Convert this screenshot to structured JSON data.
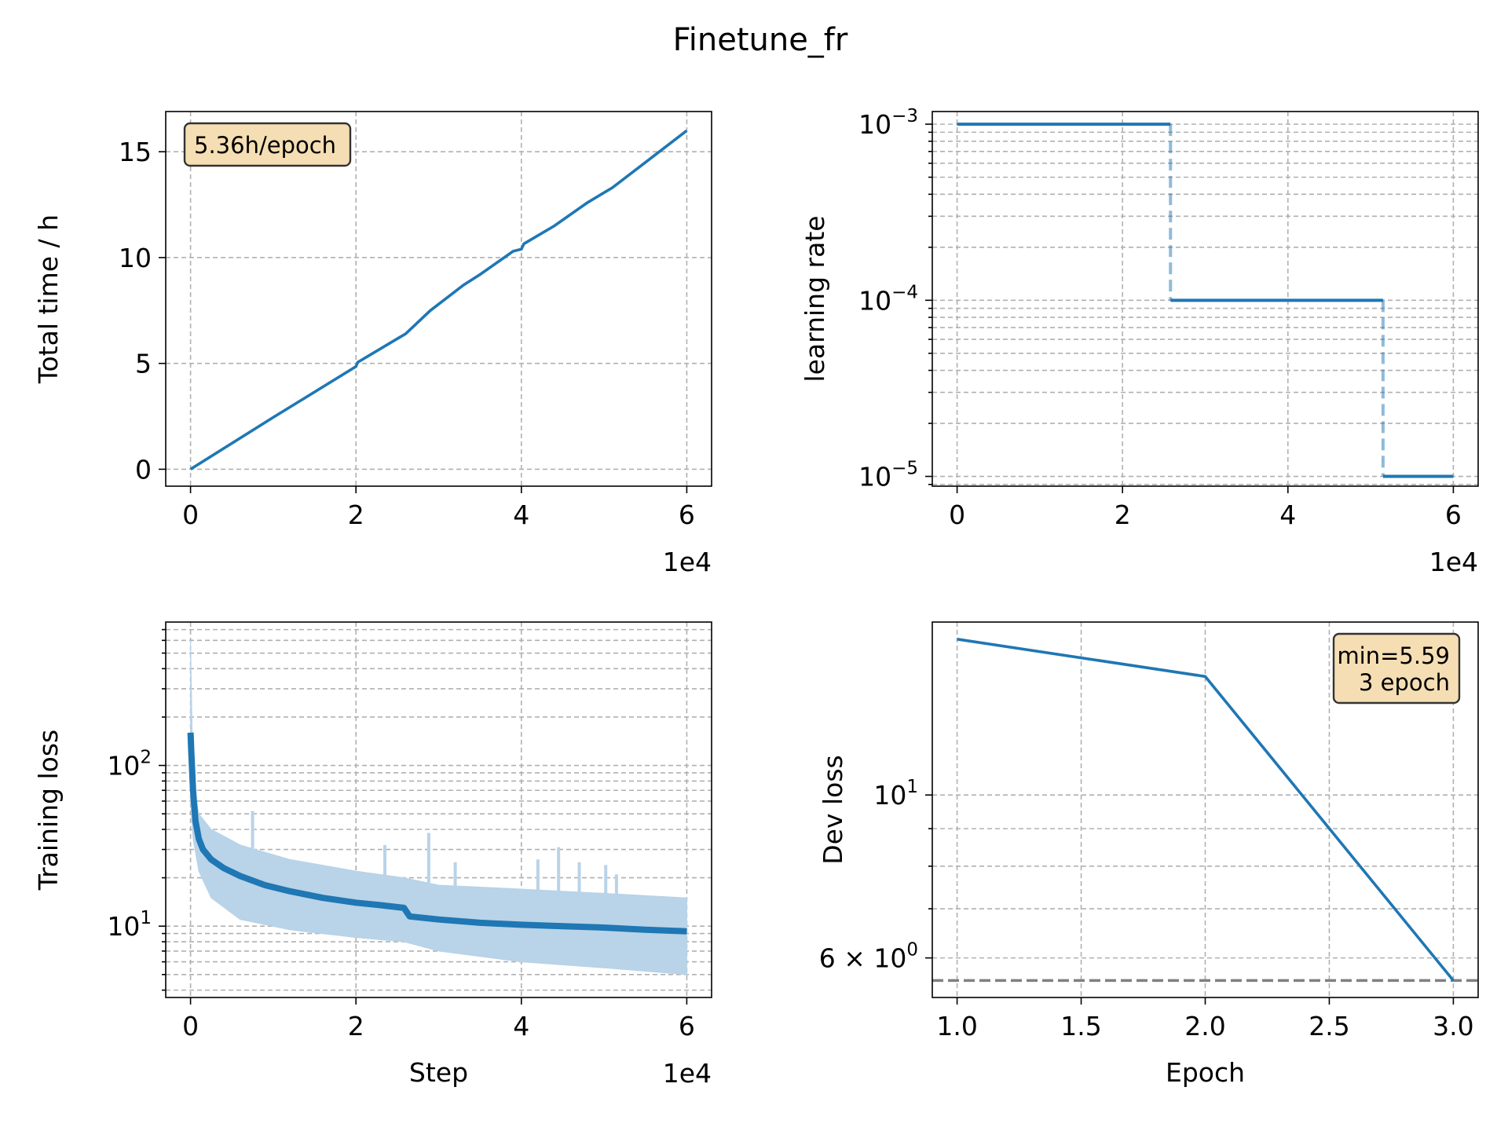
{
  "figure": {
    "title": "Finetune_fr",
    "line_color": "#1f77b4",
    "raw_color": "#b9d3e8",
    "annotation_fill": "#f5deb3",
    "annotation_edge": "#333333",
    "min_line_color": "#808080"
  },
  "chart_data": [
    {
      "id": "total-time",
      "type": "line",
      "title": "",
      "xlabel": "",
      "ylabel": "Total time / h",
      "x_offset_label": "1e4",
      "xlim": [
        -3000,
        63000
      ],
      "ylim": [
        -0.8,
        16.9
      ],
      "xticks": [
        0,
        20000,
        40000,
        60000
      ],
      "xtick_labels": [
        "0",
        "2",
        "4",
        "6"
      ],
      "yticks": [
        0,
        5,
        10,
        15
      ],
      "ytick_labels": [
        "0",
        "5",
        "10",
        "15"
      ],
      "grid": true,
      "annotation": "5.36h/epoch",
      "annotation_position": "top-left",
      "series": [
        {
          "x": [
            0,
            10000,
            20000,
            20200,
            26000,
            29000,
            33000,
            35000,
            39000,
            40000,
            40300,
            44000,
            48000,
            51000,
            55000,
            60000
          ],
          "y": [
            0,
            2.45,
            4.85,
            5.05,
            6.4,
            7.5,
            8.7,
            9.2,
            10.3,
            10.4,
            10.65,
            11.5,
            12.6,
            13.3,
            14.5,
            16.0
          ]
        }
      ]
    },
    {
      "id": "learning-rate",
      "type": "line",
      "title": "",
      "xlabel": "",
      "ylabel": "learning rate",
      "x_offset_label": "1e4",
      "xlim": [
        -3000,
        63000
      ],
      "ylim": [
        8.8e-06,
        0.00118
      ],
      "yscale": "log",
      "xticks": [
        0,
        20000,
        40000,
        60000
      ],
      "xtick_labels": [
        "0",
        "2",
        "4",
        "6"
      ],
      "yticks": [
        0.001,
        0.0001,
        1e-05
      ],
      "ytick_bases": [
        "10",
        "10",
        "10"
      ],
      "ytick_exponents": [
        "−3",
        "−4",
        "−5"
      ],
      "grid": true,
      "steps": [
        {
          "x0": 0,
          "x1": 25800,
          "y": 0.001
        },
        {
          "x0": 25800,
          "x1": 51500,
          "y": 0.0001
        },
        {
          "x0": 51500,
          "x1": 60000,
          "y": 1e-05
        }
      ]
    },
    {
      "id": "training-loss",
      "type": "line",
      "title": "",
      "xlabel": "Step",
      "ylabel": "Training loss",
      "x_offset_label": "1e4",
      "xlim": [
        -3000,
        63000
      ],
      "ylim": [
        3.6,
        780
      ],
      "yscale": "log",
      "xticks": [
        0,
        20000,
        40000,
        60000
      ],
      "xtick_labels": [
        "0",
        "2",
        "4",
        "6"
      ],
      "yticks": [
        100,
        10
      ],
      "ytick_bases": [
        "10",
        "10"
      ],
      "ytick_exponents": [
        "2",
        "1"
      ],
      "grid": true,
      "series": [
        {
          "name": "",
          "role": "smoothed",
          "x": [
            0,
            100,
            300,
            600,
            1000,
            1500,
            2500,
            4000,
            6000,
            9000,
            12000,
            16000,
            20000,
            23000,
            25800,
            26500,
            30000,
            35000,
            40000,
            45000,
            50000,
            55000,
            60000
          ],
          "y": [
            160,
            120,
            70,
            45,
            35,
            30,
            26,
            23,
            20.5,
            18,
            16.5,
            15,
            14,
            13.5,
            13,
            11.5,
            11,
            10.5,
            10.2,
            10,
            9.8,
            9.5,
            9.3
          ]
        }
      ],
      "raw_band": {
        "x": [
          0,
          300,
          1000,
          2500,
          6000,
          12000,
          20000,
          25800,
          30000,
          40000,
          50000,
          60000
        ],
        "upper": [
          600,
          80,
          50,
          40,
          32,
          26,
          22,
          20,
          18,
          17,
          16,
          15
        ],
        "lower": [
          60,
          35,
          22,
          15,
          11,
          9.5,
          8.5,
          8,
          7,
          6,
          5.5,
          5
        ]
      },
      "raw_spikes": [
        {
          "x": 7500,
          "y": 52
        },
        {
          "x": 23500,
          "y": 32
        },
        {
          "x": 28800,
          "y": 38
        },
        {
          "x": 32000,
          "y": 25
        },
        {
          "x": 42000,
          "y": 26
        },
        {
          "x": 44500,
          "y": 31
        },
        {
          "x": 47000,
          "y": 25
        },
        {
          "x": 50200,
          "y": 24
        },
        {
          "x": 51500,
          "y": 21
        }
      ]
    },
    {
      "id": "dev-loss",
      "type": "line",
      "title": "",
      "xlabel": "Epoch",
      "ylabel": "Dev loss",
      "xlim": [
        0.9,
        3.1
      ],
      "ylim": [
        5.3,
        17.2
      ],
      "yscale": "log",
      "xticks": [
        1.0,
        1.5,
        2.0,
        2.5,
        3.0
      ],
      "xtick_labels": [
        "1.0",
        "1.5",
        "2.0",
        "2.5",
        "3.0"
      ],
      "yticks": [
        10,
        6
      ],
      "ytick_bases": [
        "10",
        "6 × 10"
      ],
      "ytick_exponents": [
        "1",
        "0"
      ],
      "grid": true,
      "annotation_lines": [
        "min=5.59",
        "3 epoch"
      ],
      "annotation_position": "top-right",
      "min_value": 5.59,
      "series": [
        {
          "x": [
            1.0,
            2.0,
            3.0
          ],
          "y": [
            16.3,
            14.5,
            5.59
          ]
        }
      ]
    }
  ]
}
